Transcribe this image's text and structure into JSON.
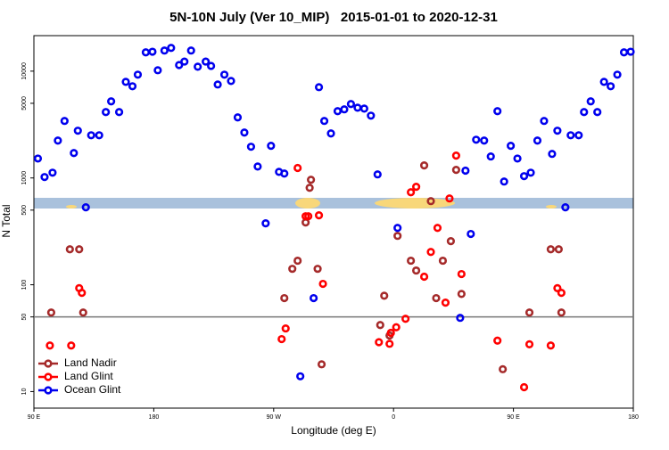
{
  "chart_data": {
    "type": "scatter",
    "title": "5N-10N July (Ver 10_MIP)   2015-01-01 to 2020-12-31",
    "xlabel": "Longitude (deg E)",
    "ylabel": "N Total",
    "log_y": true,
    "hline": 50,
    "legend": "bottom-left",
    "xlim": [
      90,
      540
    ],
    "xticks": [
      {
        "value": 90,
        "label": "90 E"
      },
      {
        "value": 180,
        "label": "180"
      },
      {
        "value": 270,
        "label": "90 W"
      },
      {
        "value": 360,
        "label": "0"
      },
      {
        "value": 450,
        "label": "90 E"
      },
      {
        "value": 540,
        "label": "180"
      }
    ],
    "ylim": [
      7,
      21500
    ],
    "yticks": [
      10,
      50,
      100,
      500,
      1000,
      5000,
      10000
    ],
    "series": [
      {
        "name": "Land Nadir",
        "color": "#a52a2a",
        "x": [
          103,
          117,
          124,
          127,
          278,
          284,
          288,
          294,
          297,
          298,
          303,
          306,
          350,
          353,
          357,
          363,
          373,
          377,
          383,
          388,
          392,
          397,
          403,
          407,
          411,
          442,
          462,
          478,
          484,
          486
        ],
        "values": [
          55,
          215,
          215,
          55,
          75,
          141,
          168,
          383,
          809,
          962,
          141,
          18,
          42,
          79,
          33.5,
          287,
          168,
          136,
          1310,
          607,
          75,
          168,
          256,
          1190,
          82,
          16.2,
          55,
          215,
          215,
          55
        ]
      },
      {
        "name": "Land Glint",
        "color": "#ff0000",
        "x": [
          102,
          118,
          124,
          126,
          276,
          279,
          288,
          294,
          296,
          304,
          307,
          349,
          357,
          358,
          362,
          369,
          373,
          377,
          383,
          388,
          393,
          399,
          402,
          407,
          411,
          438,
          458,
          462,
          478,
          483,
          486
        ],
        "values": [
          27,
          27,
          93,
          84,
          31,
          39,
          1240,
          438,
          438,
          447,
          102,
          29,
          28,
          35.5,
          40,
          48,
          735,
          826,
          119,
          203,
          341,
          68,
          643,
          1620,
          126,
          30,
          11,
          27.7,
          27,
          93,
          84
        ]
      },
      {
        "name": "Ocean Glint",
        "color": "#0000ee",
        "x": [
          93,
          98,
          104,
          108,
          113,
          120,
          123,
          129,
          133,
          139,
          144,
          148,
          154,
          159,
          164,
          168,
          174,
          179,
          183,
          188,
          193,
          199,
          203,
          208,
          213,
          219,
          223,
          228,
          233,
          238,
          243,
          248,
          253,
          258,
          264,
          268,
          274,
          278,
          290,
          300,
          304,
          308,
          313,
          318,
          323,
          328,
          333,
          338,
          343,
          348,
          363,
          410,
          414,
          418,
          422,
          428,
          433,
          438,
          443,
          448,
          453,
          458,
          463,
          468,
          473,
          479,
          483,
          489,
          493,
          499,
          503,
          508,
          513,
          518,
          523,
          528,
          533,
          538
        ],
        "values": [
          1520,
          1020,
          1120,
          2240,
          3420,
          1710,
          2770,
          531,
          2510,
          2510,
          4140,
          5210,
          4140,
          7940,
          7220,
          9270,
          15000,
          15200,
          10200,
          15600,
          16500,
          11400,
          12300,
          15600,
          11000,
          12300,
          11200,
          7500,
          9270,
          8090,
          3690,
          2660,
          1960,
          1280,
          376,
          2000,
          1140,
          1100,
          13.9,
          75,
          7080,
          3420,
          2610,
          4220,
          4390,
          4920,
          4550,
          4460,
          3830,
          1080,
          341,
          49,
          1170,
          299,
          2280,
          2240,
          1590,
          4220,
          926,
          2000,
          1520,
          1040,
          1120,
          2240,
          3420,
          1680,
          2770,
          531,
          2510,
          2510,
          4140,
          5210,
          4140,
          7940,
          7220,
          9270,
          15000,
          15200
        ]
      }
    ]
  }
}
